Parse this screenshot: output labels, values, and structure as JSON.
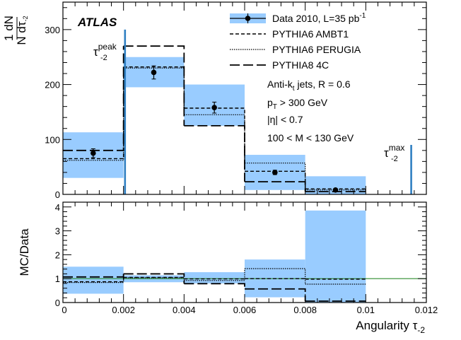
{
  "chart_data": [
    {
      "type": "bar",
      "panel": "main",
      "xlim": [
        0,
        0.012
      ],
      "ylim": [
        0,
        350
      ],
      "yticks": [
        "0",
        "100",
        "200",
        "300"
      ],
      "xticks": [
        "0",
        "0.002",
        "0.004",
        "0.006",
        "0.008",
        "0.01",
        "0.012"
      ],
      "ylabel_numerator": "1 dN",
      "ylabel_denominator": "N dτ",
      "ylabel_denominator_sub": "-2",
      "bin_edges": [
        0,
        0.002,
        0.004,
        0.006,
        0.008,
        0.01
      ],
      "series": [
        {
          "name": "Data 2010, L=35 pb",
          "name_sup": "-1",
          "style": "points",
          "x": [
            0.001,
            0.003,
            0.005,
            0.007,
            0.009
          ],
          "values": [
            75,
            222,
            158,
            40,
            8
          ],
          "stat_err": [
            8,
            12,
            10,
            4,
            2
          ]
        },
        {
          "name": "systematic uncertainty",
          "style": "band",
          "low": [
            30,
            195,
            125,
            8,
            0
          ],
          "high": [
            113,
            250,
            200,
            72,
            33
          ]
        },
        {
          "name": "PYTHIA6 AMBT1",
          "style": "dashed",
          "values": [
            65,
            232,
            157,
            42,
            10
          ]
        },
        {
          "name": "PYTHIA6 PERUGIA",
          "style": "dotted",
          "values": [
            62,
            230,
            145,
            57,
            8
          ]
        },
        {
          "name": "PYTHIA8 4C",
          "style": "longdash",
          "values": [
            80,
            270,
            125,
            23,
            5
          ]
        }
      ],
      "annotations": {
        "atlas": "ATLAS",
        "lines": [
          {
            "pre": "Anti-k",
            "sub": "t",
            "post": " jets, R = 0.6"
          },
          {
            "pre": "p",
            "sub": "T",
            "post": " > 300 GeV"
          },
          {
            "pre": "|η| < 0.7",
            "sub": "",
            "post": ""
          },
          {
            "pre": "100 < M < 130 GeV",
            "sub": "",
            "post": ""
          }
        ],
        "tau_peak": {
          "base": "τ",
          "sub": "-2",
          "sup": "peak",
          "x": 0.00205,
          "ymax": 300
        },
        "tau_max": {
          "base": "τ",
          "sub": "-2",
          "sup": "max",
          "x": 0.0115,
          "ymax": 90
        }
      }
    },
    {
      "type": "bar",
      "panel": "ratio",
      "xlim": [
        0,
        0.012
      ],
      "ylim": [
        0,
        4.2
      ],
      "yticks": [
        "0",
        "1",
        "2",
        "3",
        "4"
      ],
      "ylabel": "MC/Data",
      "xlabel": "Angularity τ",
      "xlabel_sub": "-2",
      "bin_edges": [
        0,
        0.002,
        0.004,
        0.006,
        0.008,
        0.01
      ],
      "reference_line": 1,
      "band_low": [
        0.37,
        0.85,
        0.8,
        0.22,
        0
      ],
      "band_high": [
        1.5,
        1.14,
        1.27,
        1.8,
        3.85
      ],
      "series": [
        {
          "name": "PYTHIA6 AMBT1",
          "style": "dashed",
          "values": [
            0.87,
            1.05,
            0.99,
            1.0,
            0.98
          ]
        },
        {
          "name": "PYTHIA6 PERUGIA",
          "style": "dotted",
          "values": [
            0.84,
            1.04,
            0.92,
            1.42,
            0.77
          ]
        },
        {
          "name": "PYTHIA8 4C",
          "style": "longdash",
          "values": [
            1.07,
            1.2,
            0.79,
            0.57,
            0.06
          ]
        }
      ]
    }
  ],
  "colors": {
    "band": "#99ccff",
    "accent_line": "#2f7fc2",
    "ref_line": "#2e8b2e",
    "axis": "#000000"
  }
}
